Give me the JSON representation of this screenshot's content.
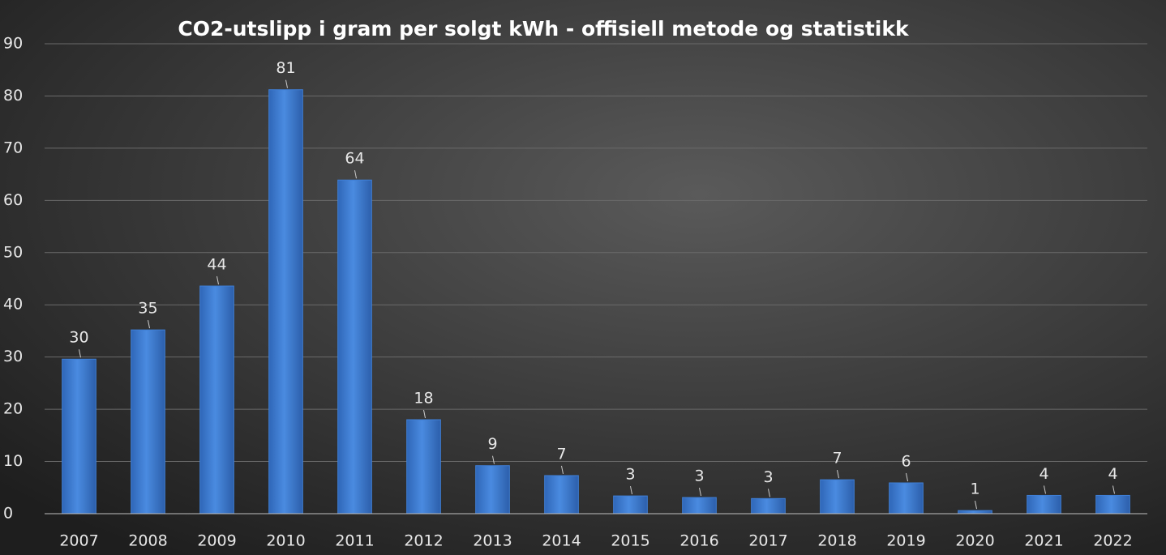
{
  "chart_data": {
    "type": "bar",
    "title": "CO2-utslipp i gram per solgt kWh - offisiell metode og statistikk",
    "categories": [
      "2007",
      "2008",
      "2009",
      "2010",
      "2011",
      "2012",
      "2013",
      "2014",
      "2015",
      "2016",
      "2017",
      "2018",
      "2019",
      "2020",
      "2021",
      "2022"
    ],
    "values": [
      29.6,
      35.2,
      43.6,
      81.2,
      63.9,
      18.0,
      9.2,
      7.3,
      3.4,
      3.1,
      2.9,
      6.5,
      5.9,
      0.6,
      3.5,
      3.5
    ],
    "value_labels": [
      "30",
      "35",
      "44",
      "81",
      "64",
      "18",
      "9",
      "7",
      "3",
      "3",
      "3",
      "7",
      "6",
      "1",
      "4",
      "4"
    ],
    "color": "#3f7fd6",
    "ylim": [
      0,
      90
    ],
    "yticks": [
      0,
      10,
      20,
      30,
      40,
      50,
      60,
      70,
      80,
      90
    ],
    "grid": true
  }
}
